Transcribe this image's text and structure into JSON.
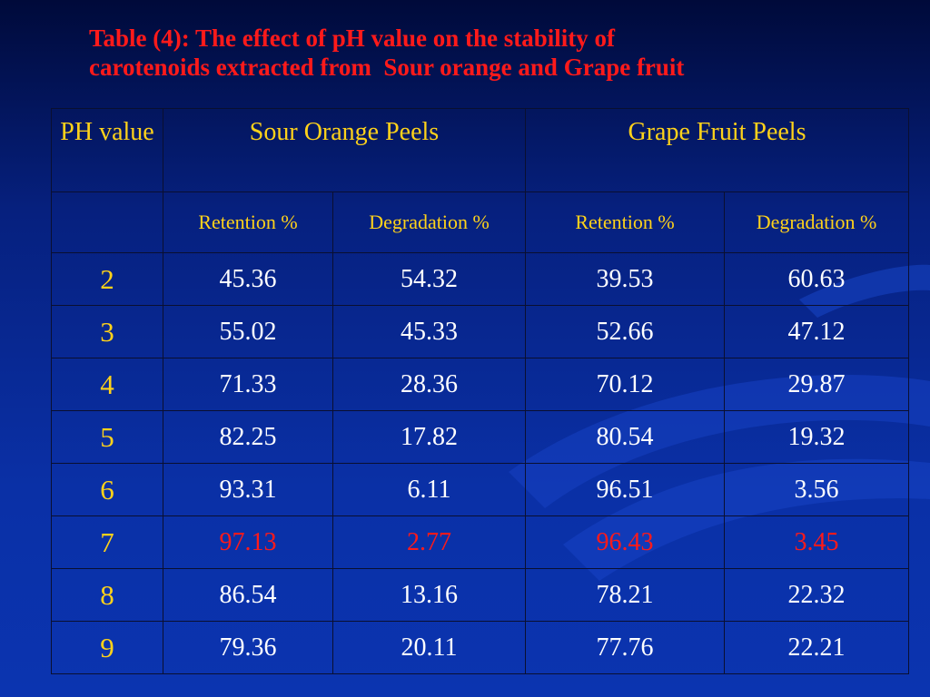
{
  "header": {
    "title_lines": [
      "Table (4): The effect of pH value on the stability of",
      "carotenoids extracted from  Sour orange and Grape fruit"
    ]
  },
  "table": {
    "header": [
      "PH value",
      "Sour Orange Peels",
      "Grape Fruit Peels"
    ],
    "subheader": [
      "Retention %",
      "Degradation %",
      "Retention %",
      "Degradation %"
    ],
    "rows": [
      {
        "ph": 2,
        "values": [
          45.36,
          54.32,
          39.53,
          60.63
        ]
      },
      {
        "ph": 3,
        "values": [
          55.02,
          45.33,
          52.66,
          47.12
        ]
      },
      {
        "ph": 4,
        "values": [
          71.33,
          28.36,
          70.12,
          29.87
        ]
      },
      {
        "ph": 5,
        "values": [
          82.25,
          17.82,
          80.54,
          19.32
        ]
      },
      {
        "ph": 6,
        "values": [
          93.31,
          6.11,
          96.51,
          3.56
        ]
      },
      {
        "ph": 7,
        "values": [
          97.13,
          2.77,
          96.43,
          3.45
        ],
        "color": "#ff1a1a"
      },
      {
        "ph": 8,
        "values": [
          86.54,
          13.16,
          78.21,
          22.32
        ]
      },
      {
        "ph": 9,
        "values": [
          79.36,
          20.11,
          77.76,
          22.21
        ]
      }
    ]
  }
}
